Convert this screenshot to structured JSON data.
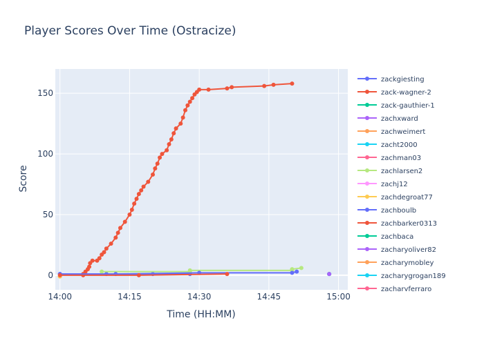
{
  "chart_data": {
    "type": "line",
    "title": "Player Scores Over Time (Ostracize)",
    "xlabel": "Time (HH:MM)",
    "ylabel": "Score",
    "x_axis_format": "HH:MM",
    "xlim": [
      "13:59",
      "15:02"
    ],
    "ylim": [
      -12,
      170
    ],
    "x_ticks": [
      "14:00",
      "14:15",
      "14:30",
      "14:45",
      "15:00"
    ],
    "y_ticks": [
      0,
      50,
      100,
      150
    ],
    "grid": true,
    "legend_position": "right",
    "plot_background": "#E5ECF6",
    "series": [
      {
        "name": "zackgiesting",
        "color": "#636EFA",
        "points": [
          [
            "14:00",
            1
          ],
          [
            "14:10",
            1
          ],
          [
            "14:20",
            1
          ],
          [
            "14:28",
            1
          ]
        ]
      },
      {
        "name": "zack-wagner-2",
        "color": "#EF553B",
        "points": [
          [
            "14:05",
            0
          ],
          [
            "14:05",
            1
          ],
          [
            "14:05.5",
            3
          ],
          [
            "14:06",
            5
          ],
          [
            "14:06.3",
            7
          ],
          [
            "14:06.5",
            10
          ],
          [
            "14:07",
            12
          ],
          [
            "14:08",
            12
          ],
          [
            "14:08.5",
            14
          ],
          [
            "14:09",
            17
          ],
          [
            "14:09.5",
            19
          ],
          [
            "14:10",
            22
          ],
          [
            "14:11",
            26
          ],
          [
            "14:12",
            31
          ],
          [
            "14:12.5",
            35
          ],
          [
            "14:13",
            39
          ],
          [
            "14:14",
            44
          ],
          [
            "14:15",
            50
          ],
          [
            "14:15.5",
            54
          ],
          [
            "14:16",
            59
          ],
          [
            "14:16.5",
            63
          ],
          [
            "14:17",
            67
          ],
          [
            "14:17.5",
            70
          ],
          [
            "14:18",
            73
          ],
          [
            "14:19",
            77
          ],
          [
            "14:20",
            83
          ],
          [
            "14:20.5",
            88
          ],
          [
            "14:21",
            92
          ],
          [
            "14:21.5",
            97
          ],
          [
            "14:22",
            100
          ],
          [
            "14:23",
            103
          ],
          [
            "14:23.5",
            108
          ],
          [
            "14:24",
            112
          ],
          [
            "14:24.5",
            117
          ],
          [
            "14:25",
            121
          ],
          [
            "14:26",
            125
          ],
          [
            "14:26.5",
            130
          ],
          [
            "14:27",
            136
          ],
          [
            "14:27.5",
            140
          ],
          [
            "14:28",
            143
          ],
          [
            "14:28.5",
            146
          ],
          [
            "14:29",
            149
          ],
          [
            "14:29.5",
            151
          ],
          [
            "14:30",
            153
          ],
          [
            "14:32",
            153
          ],
          [
            "14:36",
            154
          ],
          [
            "14:37",
            155
          ],
          [
            "14:44",
            156
          ],
          [
            "14:46",
            157
          ],
          [
            "14:50",
            158
          ]
        ]
      },
      {
        "name": "zack-gauthier-1",
        "color": "#00CC96",
        "points": []
      },
      {
        "name": "zachxward",
        "color": "#AB63FA",
        "points": [
          [
            "14:58",
            1
          ]
        ]
      },
      {
        "name": "zachweimert",
        "color": "#FFA15A",
        "points": [
          [
            "14:00",
            -1
          ]
        ]
      },
      {
        "name": "zacht2000",
        "color": "#19D3F3",
        "points": [
          [
            "14:58",
            1
          ]
        ]
      },
      {
        "name": "zachman03",
        "color": "#FF6692",
        "points": []
      },
      {
        "name": "zachlarsen2",
        "color": "#B6E880",
        "points": [
          [
            "14:09",
            3
          ],
          [
            "14:28",
            3
          ],
          [
            "14:28",
            4
          ],
          [
            "14:50",
            4
          ],
          [
            "14:50",
            5
          ],
          [
            "14:52",
            6
          ]
        ]
      },
      {
        "name": "zachj12",
        "color": "#FF97FF",
        "points": []
      },
      {
        "name": "zachdegroat77",
        "color": "#FECB52",
        "points": [
          [
            "14:00",
            -1
          ]
        ]
      },
      {
        "name": "zachboulb",
        "color": "#636EFA",
        "points": [
          [
            "14:00",
            1
          ],
          [
            "14:12",
            1
          ],
          [
            "14:30",
            2
          ],
          [
            "14:50",
            2
          ],
          [
            "14:51",
            3
          ]
        ]
      },
      {
        "name": "zachbarker0313",
        "color": "#EF553B",
        "points": [
          [
            "14:00",
            0
          ],
          [
            "14:17",
            0
          ],
          [
            "14:36",
            1
          ]
        ]
      },
      {
        "name": "zachbaca",
        "color": "#00CC96",
        "points": [
          [
            "14:58",
            1
          ]
        ]
      },
      {
        "name": "zacharyoliver82",
        "color": "#AB63FA",
        "points": [
          [
            "14:58",
            1
          ]
        ]
      },
      {
        "name": "zacharymobley",
        "color": "#FFA15A",
        "points": []
      },
      {
        "name": "zacharygrogan189",
        "color": "#19D3F3",
        "points": []
      },
      {
        "name": "zacharyferraro",
        "color": "#FF6692",
        "points": []
      }
    ]
  }
}
